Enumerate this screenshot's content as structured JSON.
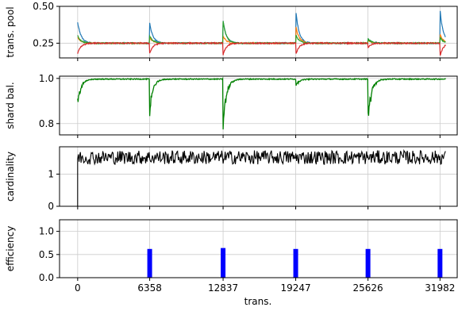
{
  "chart_data": [
    {
      "type": "line",
      "ylabel": "trans. pool",
      "ylim": [
        0.15,
        0.5
      ],
      "yticks": [
        0.25,
        0.5
      ],
      "ytick_labels": [
        "0.25",
        "0.50"
      ],
      "grid": "on",
      "series": [
        {
          "color": "#1f77b4",
          "spikes": [
            0.39,
            0.4,
            0.48,
            0.28,
            0.48
          ]
        },
        {
          "color": "#ff7f0e",
          "spikes": [
            0.29,
            0.3,
            0.37,
            0.27,
            0.31
          ]
        },
        {
          "color": "#2ca02c",
          "spikes": [
            0.3,
            0.4,
            0.31,
            0.28,
            0.29
          ]
        },
        {
          "color": "#d62728",
          "spikes": [
            0.18,
            0.17,
            0.17,
            0.22,
            0.16
          ]
        }
      ],
      "baseline": 0.25
    },
    {
      "type": "line",
      "ylabel": "shard bal.",
      "ylim": [
        0.75,
        1.01
      ],
      "yticks": [
        0.8,
        1.0
      ],
      "ytick_labels": [
        "0.8",
        "1.0"
      ],
      "grid": "on",
      "series": [
        {
          "color": "#008000",
          "baseline": 0.997,
          "dips": [
            0.86,
            0.83,
            0.76,
            0.96,
            0.76
          ]
        }
      ]
    },
    {
      "type": "line",
      "ylabel": "cardinality",
      "ylim": [
        0,
        1.85
      ],
      "yticks": [
        0,
        1
      ],
      "ytick_labels": [
        "0",
        "1"
      ],
      "grid": "on",
      "series": [
        {
          "color": "#000000",
          "mean": 1.52,
          "range": [
            1.22,
            1.8
          ],
          "start": 0
        }
      ]
    },
    {
      "type": "bar",
      "ylabel": "efficiency",
      "xlabel": "trans.",
      "ylim": [
        0,
        1.25
      ],
      "yticks": [
        0.0,
        0.5,
        1.0
      ],
      "ytick_labels": [
        "0.0",
        "0.5",
        "1.0"
      ],
      "grid": "on",
      "bar_color": "#0000ff",
      "bars": [
        {
          "x": 6358,
          "value": 0.62
        },
        {
          "x": 12837,
          "value": 0.64
        },
        {
          "x": 19247,
          "value": 0.62
        },
        {
          "x": 25626,
          "value": 0.62
        },
        {
          "x": 31982,
          "value": 0.62
        }
      ]
    }
  ],
  "x_axis": {
    "xlim": [
      -1600,
      33500
    ],
    "ticks": [
      0,
      6358,
      12837,
      19247,
      25626,
      31982
    ],
    "tick_labels": [
      "0",
      "6358",
      "12837",
      "19247",
      "25626",
      "31982"
    ],
    "xlabel": "trans."
  }
}
